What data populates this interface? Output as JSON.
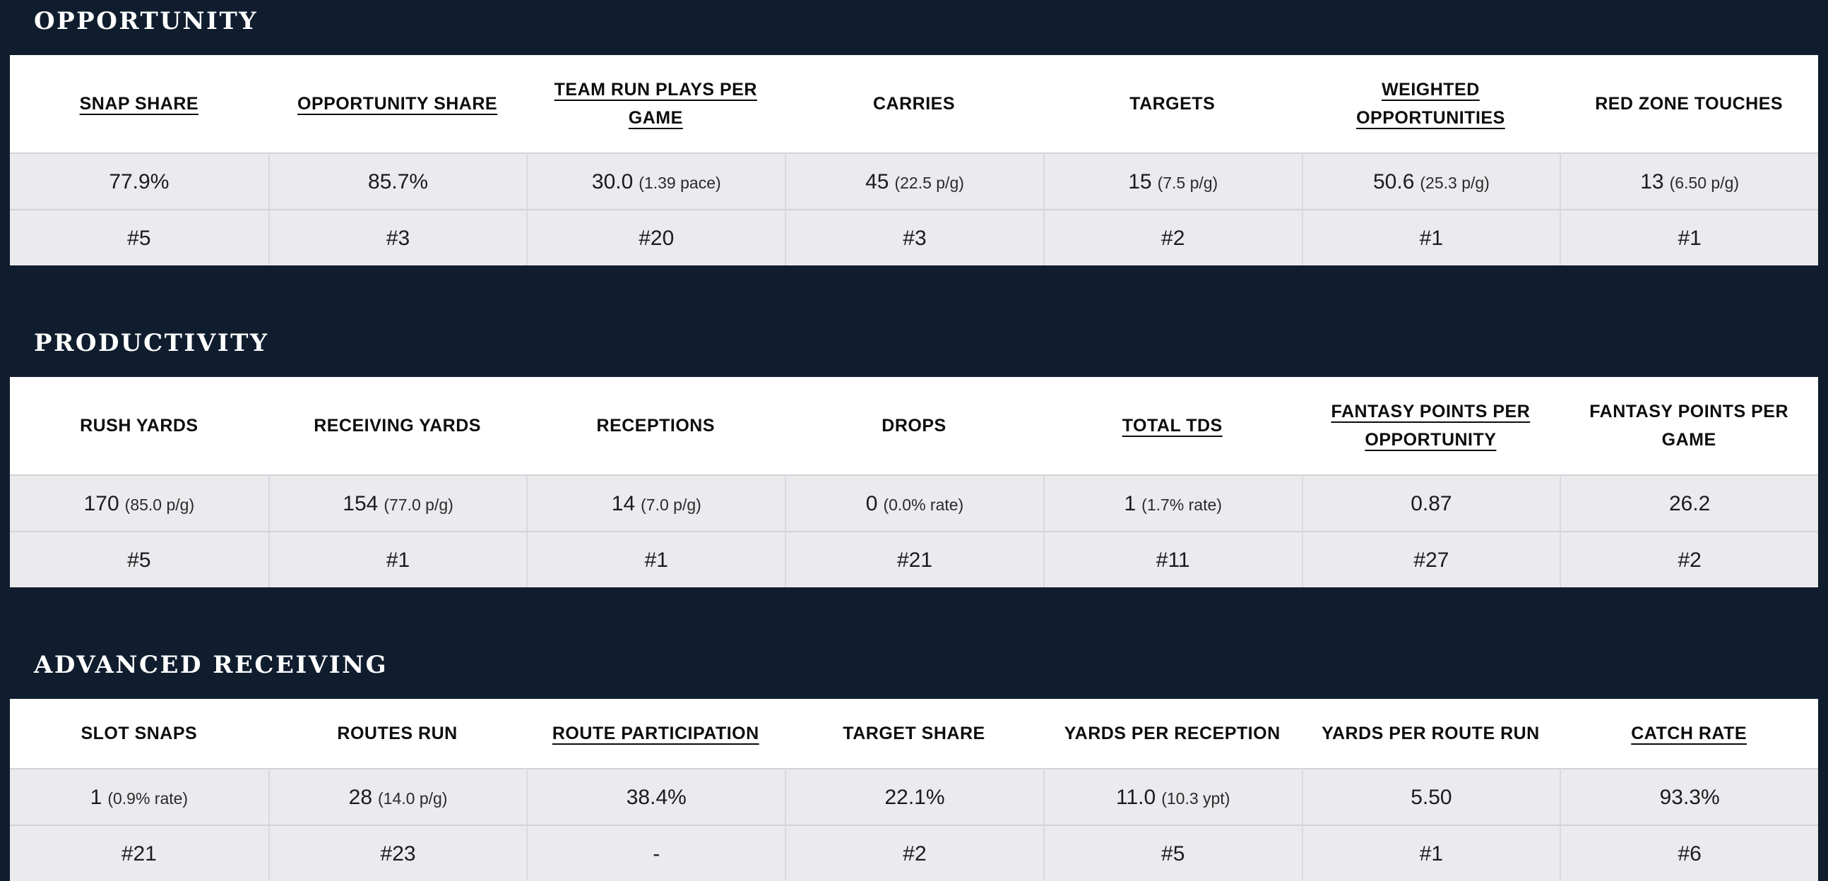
{
  "colors": {
    "background": "#101d2e",
    "table_header_bg": "#ffffff",
    "cell_bg": "#ebebed",
    "row_divider": "#d3d3d7",
    "divider": "#dadade",
    "title_text": "#ffffff",
    "header_text": "#0d0d0d",
    "value_text": "#1b1b1d"
  },
  "sections": [
    {
      "title": "OPPORTUNITY",
      "columns": [
        {
          "label": "SNAP SHARE",
          "underline": true,
          "value": "77.9%",
          "sub": "",
          "rank": "#5"
        },
        {
          "label": "OPPORTUNITY SHARE",
          "underline": true,
          "value": "85.7%",
          "sub": "",
          "rank": "#3"
        },
        {
          "label": "TEAM RUN PLAYS PER GAME",
          "underline": true,
          "value": "30.0",
          "sub": "(1.39 pace)",
          "rank": "#20"
        },
        {
          "label": "CARRIES",
          "underline": false,
          "value": "45",
          "sub": "(22.5 p/g)",
          "rank": "#3"
        },
        {
          "label": "TARGETS",
          "underline": false,
          "value": "15",
          "sub": "(7.5 p/g)",
          "rank": "#2"
        },
        {
          "label": "WEIGHTED OPPORTUNITIES",
          "underline": true,
          "value": "50.6",
          "sub": "(25.3 p/g)",
          "rank": "#1"
        },
        {
          "label": "RED ZONE TOUCHES",
          "underline": false,
          "value": "13",
          "sub": "(6.50 p/g)",
          "rank": "#1"
        }
      ]
    },
    {
      "title": "PRODUCTIVITY",
      "columns": [
        {
          "label": "RUSH YARDS",
          "underline": false,
          "value": "170",
          "sub": "(85.0 p/g)",
          "rank": "#5"
        },
        {
          "label": "RECEIVING YARDS",
          "underline": false,
          "value": "154",
          "sub": "(77.0 p/g)",
          "rank": "#1"
        },
        {
          "label": "RECEPTIONS",
          "underline": false,
          "value": "14",
          "sub": "(7.0 p/g)",
          "rank": "#1"
        },
        {
          "label": "DROPS",
          "underline": false,
          "value": "0",
          "sub": "(0.0% rate)",
          "rank": "#21"
        },
        {
          "label": "TOTAL TDS",
          "underline": true,
          "value": "1",
          "sub": "(1.7% rate)",
          "rank": "#11"
        },
        {
          "label": "FANTASY POINTS PER OPPORTUNITY",
          "underline": true,
          "value": "0.87",
          "sub": "",
          "rank": "#27"
        },
        {
          "label": "FANTASY POINTS PER GAME",
          "underline": false,
          "value": "26.2",
          "sub": "",
          "rank": "#2"
        }
      ]
    },
    {
      "title": "ADVANCED RECEIVING",
      "columns": [
        {
          "label": "SLOT SNAPS",
          "underline": false,
          "value": "1",
          "sub": "(0.9% rate)",
          "rank": "#21"
        },
        {
          "label": "ROUTES RUN",
          "underline": false,
          "value": "28",
          "sub": "(14.0 p/g)",
          "rank": "#23"
        },
        {
          "label": "ROUTE PARTICIPATION",
          "underline": true,
          "value": "38.4%",
          "sub": "",
          "rank": "-"
        },
        {
          "label": "TARGET SHARE",
          "underline": false,
          "value": "22.1%",
          "sub": "",
          "rank": "#2"
        },
        {
          "label": "YARDS PER RECEPTION",
          "underline": false,
          "value": "11.0",
          "sub": "(10.3 ypt)",
          "rank": "#5"
        },
        {
          "label": "YARDS PER ROUTE RUN",
          "underline": false,
          "value": "5.50",
          "sub": "",
          "rank": "#1"
        },
        {
          "label": "CATCH RATE",
          "underline": true,
          "value": "93.3%",
          "sub": "",
          "rank": "#6"
        }
      ]
    }
  ]
}
